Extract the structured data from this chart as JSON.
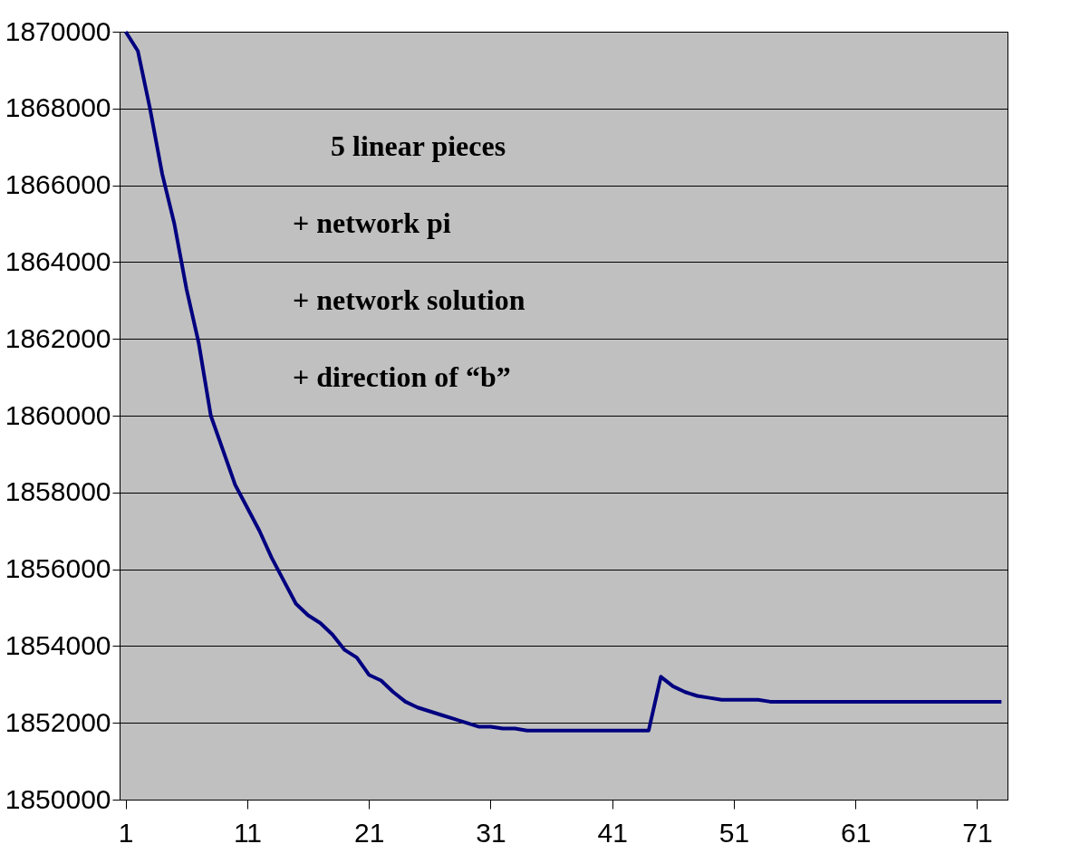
{
  "chart_data": {
    "type": "line",
    "x": [
      1,
      2,
      3,
      4,
      5,
      6,
      7,
      8,
      9,
      10,
      11,
      12,
      13,
      14,
      15,
      16,
      17,
      18,
      19,
      20,
      21,
      22,
      23,
      24,
      25,
      26,
      27,
      28,
      29,
      30,
      31,
      32,
      33,
      34,
      35,
      36,
      37,
      38,
      39,
      40,
      41,
      42,
      43,
      44,
      45,
      46,
      47,
      48,
      49,
      50,
      51,
      52,
      53,
      54,
      55,
      56,
      57,
      58,
      59,
      60,
      61,
      62,
      63,
      64,
      65,
      66,
      67,
      68,
      69,
      70,
      71,
      72,
      73
    ],
    "series": [
      {
        "color": "#000080",
        "values": [
          1870000,
          1869500,
          1868000,
          1866300,
          1865000,
          1863300,
          1861900,
          1860000,
          1859100,
          1858200,
          1857600,
          1857000,
          1856300,
          1855700,
          1855100,
          1854800,
          1854600,
          1854300,
          1853900,
          1853700,
          1853250,
          1853100,
          1852800,
          1852550,
          1852400,
          1852300,
          1852200,
          1852100,
          1852000,
          1851900,
          1851900,
          1851850,
          1851850,
          1851800,
          1851800,
          1851800,
          1851800,
          1851800,
          1851800,
          1851800,
          1851800,
          1851800,
          1851800,
          1851800,
          1853200,
          1852950,
          1852800,
          1852700,
          1852650,
          1852600,
          1852600,
          1852600,
          1852600,
          1852550,
          1852550,
          1852550,
          1852550,
          1852550,
          1852550,
          1852550,
          1852550,
          1852550,
          1852550,
          1852550,
          1852550,
          1852550,
          1852550,
          1852550,
          1852550,
          1852550,
          1852550,
          1852550,
          1852550
        ]
      }
    ],
    "xlim": [
      0.5,
      73.5
    ],
    "xticks": [
      1,
      11,
      21,
      31,
      41,
      51,
      61,
      71
    ],
    "ylim": [
      1850000,
      1870000
    ],
    "yticks": [
      1850000,
      1852000,
      1854000,
      1856000,
      1858000,
      1860000,
      1862000,
      1864000,
      1866000,
      1868000,
      1870000
    ],
    "grid": "y",
    "marker": "none",
    "line_style": "solid",
    "annotations": [
      "5  linear  pieces",
      "+  network  pi",
      "+  network  solution",
      "+  direction  of  “b”"
    ]
  }
}
